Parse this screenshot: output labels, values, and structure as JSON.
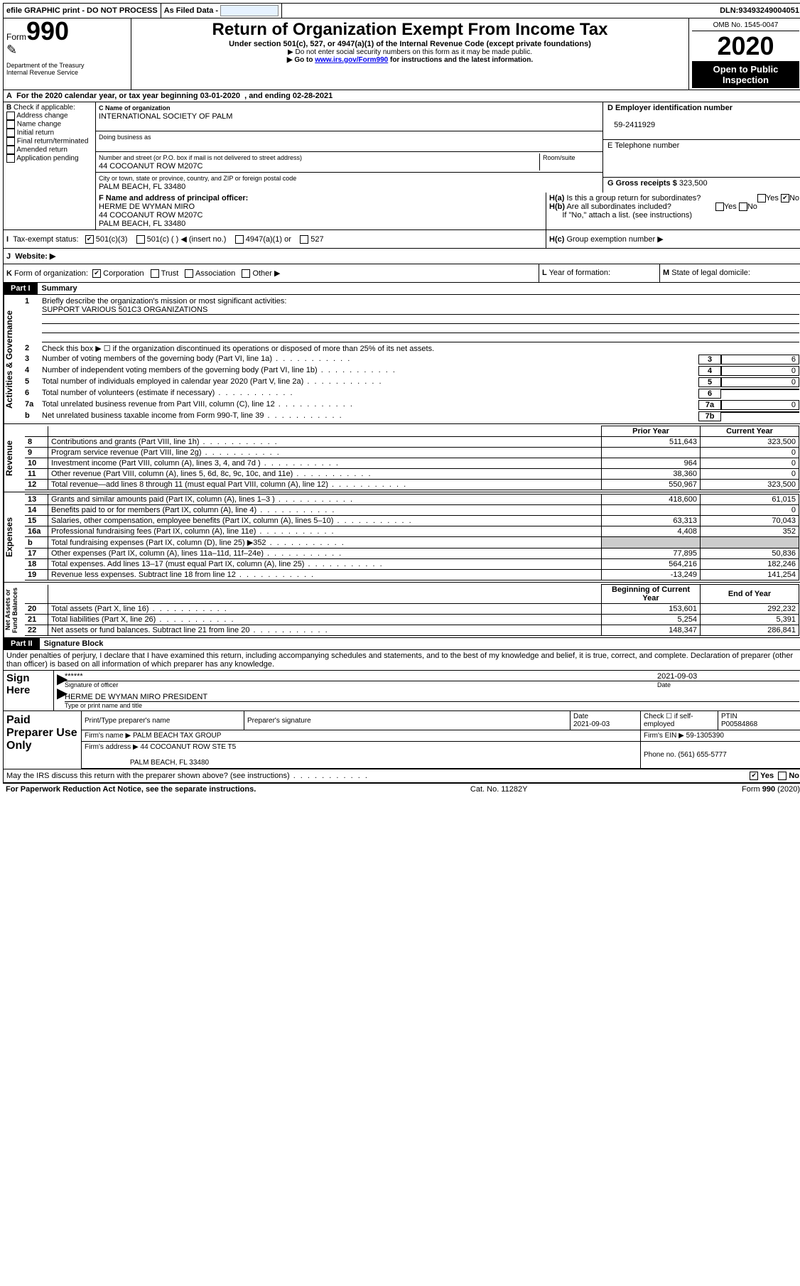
{
  "topbar": {
    "efile": "efile GRAPHIC print - DO NOT PROCESS",
    "asfiled": "As Filed Data -",
    "dln_label": "DLN:",
    "dln": "93493249004051"
  },
  "header": {
    "formword": "Form",
    "form": "990",
    "dept": "Department of the Treasury\nInternal Revenue Service",
    "title": "Return of Organization Exempt From Income Tax",
    "subtitle": "Under section 501(c), 527, or 4947(a)(1) of the Internal Revenue Code (except private foundations)",
    "note1": "▶ Do not enter social security numbers on this form as it may be made public.",
    "note2_pre": "▶ Go to ",
    "note2_link": "www.irs.gov/Form990",
    "note2_post": " for instructions and the latest information.",
    "omb": "OMB No. 1545-0047",
    "year": "2020",
    "opentopublic": "Open to Public Inspection"
  },
  "A": {
    "text_pre": "For the 2020 calendar year, or tax year beginning ",
    "begin": "03-01-2020",
    "mid": ", and ending ",
    "end": "02-28-2021"
  },
  "B": {
    "label": "Check if applicable:",
    "items": [
      "Address change",
      "Name change",
      "Initial return",
      "Final return/terminated",
      "Amended return",
      "Application pending"
    ]
  },
  "C": {
    "name_label": "C Name of organization",
    "name": "INTERNATIONAL SOCIETY OF PALM",
    "dba_label": "Doing business as",
    "dba": "",
    "street_label": "Number and street (or P.O. box if mail is not delivered to street address)",
    "room_label": "Room/suite",
    "street": "44 COCOANUT ROW M207C",
    "city_label": "City or town, state or province, country, and ZIP or foreign postal code",
    "city": "PALM BEACH, FL  33480"
  },
  "D": {
    "label": "D Employer identification number",
    "value": "59-2411929"
  },
  "E": {
    "label": "E Telephone number",
    "value": ""
  },
  "G": {
    "label": "G Gross receipts $",
    "value": "323,500"
  },
  "F": {
    "label": "F  Name and address of principal officer:",
    "name": "HERME DE WYMAN MIRO",
    "addr1": "44 COCOANUT ROW M207C",
    "addr2": "PALM BEACH, FL  33480"
  },
  "H": {
    "a": "Is this a group return for subordinates?",
    "a_yes": "Yes",
    "a_no": "No",
    "b": "Are all subordinates included?",
    "b_yes": "Yes",
    "b_no": "No",
    "note": "If \"No,\" attach a list. (see instructions)",
    "c": "Group exemption number ▶"
  },
  "I": {
    "label": "Tax-exempt status:",
    "opt1": "501(c)(3)",
    "opt2": "501(c) (   ) ◀ (insert no.)",
    "opt3": "4947(a)(1) or",
    "opt4": "527"
  },
  "J": {
    "label": "Website: ▶"
  },
  "K": {
    "label": "Form of organization:",
    "opts": [
      "Corporation",
      "Trust",
      "Association",
      "Other ▶"
    ]
  },
  "L": {
    "label": "Year of formation:"
  },
  "M": {
    "label": "State of legal domicile:"
  },
  "partI": {
    "label": "Part I",
    "title": "Summary"
  },
  "summary": {
    "line1_label": "Briefly describe the organization's mission or most significant activities:",
    "line1_val": "SUPPORT VARIOUS 501C3 ORGANIZATIONS",
    "line2": "Check this box ▶ ☐ if the organization discontinued its operations or disposed of more than 25% of its net assets.",
    "lines": [
      {
        "n": "3",
        "lbl": "Number of voting members of the governing body (Part VI, line 1a)",
        "box": "3",
        "val": "6"
      },
      {
        "n": "4",
        "lbl": "Number of independent voting members of the governing body (Part VI, line 1b)",
        "box": "4",
        "val": "0"
      },
      {
        "n": "5",
        "lbl": "Total number of individuals employed in calendar year 2020 (Part V, line 2a)",
        "box": "5",
        "val": "0"
      },
      {
        "n": "6",
        "lbl": "Total number of volunteers (estimate if necessary)",
        "box": "6",
        "val": ""
      },
      {
        "n": "7a",
        "lbl": "Total unrelated business revenue from Part VIII, column (C), line 12",
        "box": "7a",
        "val": "0"
      },
      {
        "n": "b",
        "lbl": "Net unrelated business taxable income from Form 990-T, line 39",
        "box": "7b",
        "val": ""
      }
    ]
  },
  "revhead": {
    "prior": "Prior Year",
    "current": "Current Year"
  },
  "revenue": [
    {
      "n": "8",
      "lbl": "Contributions and grants (Part VIII, line 1h)",
      "p": "511,643",
      "c": "323,500"
    },
    {
      "n": "9",
      "lbl": "Program service revenue (Part VIII, line 2g)",
      "p": "",
      "c": "0"
    },
    {
      "n": "10",
      "lbl": "Investment income (Part VIII, column (A), lines 3, 4, and 7d )",
      "p": "964",
      "c": "0"
    },
    {
      "n": "11",
      "lbl": "Other revenue (Part VIII, column (A), lines 5, 6d, 8c, 9c, 10c, and 11e)",
      "p": "38,360",
      "c": "0"
    },
    {
      "n": "12",
      "lbl": "Total revenue—add lines 8 through 11 (must equal Part VIII, column (A), line 12)",
      "p": "550,967",
      "c": "323,500"
    }
  ],
  "expenses": [
    {
      "n": "13",
      "lbl": "Grants and similar amounts paid (Part IX, column (A), lines 1–3 )",
      "p": "418,600",
      "c": "61,015"
    },
    {
      "n": "14",
      "lbl": "Benefits paid to or for members (Part IX, column (A), line 4)",
      "p": "",
      "c": "0"
    },
    {
      "n": "15",
      "lbl": "Salaries, other compensation, employee benefits (Part IX, column (A), lines 5–10)",
      "p": "63,313",
      "c": "70,043"
    },
    {
      "n": "16a",
      "lbl": "Professional fundraising fees (Part IX, column (A), line 11e)",
      "p": "4,408",
      "c": "352"
    },
    {
      "n": "b",
      "lbl": "Total fundraising expenses (Part IX, column (D), line 25) ▶352",
      "p": "__shade__",
      "c": "__shade__"
    },
    {
      "n": "17",
      "lbl": "Other expenses (Part IX, column (A), lines 11a–11d, 11f–24e)",
      "p": "77,895",
      "c": "50,836"
    },
    {
      "n": "18",
      "lbl": "Total expenses. Add lines 13–17 (must equal Part IX, column (A), line 25)",
      "p": "564,216",
      "c": "182,246"
    },
    {
      "n": "19",
      "lbl": "Revenue less expenses. Subtract line 18 from line 12",
      "p": "-13,249",
      "c": "141,254"
    }
  ],
  "nahead": {
    "prior": "Beginning of Current Year",
    "current": "End of Year"
  },
  "netassets": [
    {
      "n": "20",
      "lbl": "Total assets (Part X, line 16)",
      "p": "153,601",
      "c": "292,232"
    },
    {
      "n": "21",
      "lbl": "Total liabilities (Part X, line 26)",
      "p": "5,254",
      "c": "5,391"
    },
    {
      "n": "22",
      "lbl": "Net assets or fund balances. Subtract line 21 from line 20",
      "p": "148,347",
      "c": "286,841"
    }
  ],
  "partII": {
    "label": "Part II",
    "title": "Signature Block"
  },
  "perjury": "Under penalties of perjury, I declare that I have examined this return, including accompanying schedules and statements, and to the best of my knowledge and belief, it is true, correct, and complete. Declaration of preparer (other than officer) is based on all information of which preparer has any knowledge.",
  "sign": {
    "here": "Sign Here",
    "stars": "******",
    "sig_label": "Signature of officer",
    "date": "2021-09-03",
    "date_label": "Date",
    "name": "HERME DE WYMAN MIRO  PRESIDENT",
    "name_label": "Type or print name and title"
  },
  "paid": {
    "side": "Paid Preparer Use Only",
    "h1": "Print/Type preparer's name",
    "h2": "Preparer's signature",
    "h3": "Date",
    "date": "2021-09-03",
    "h4_pre": "Check ☐ if self-employed",
    "h5": "PTIN",
    "ptin": "P00584868",
    "firmname_label": "Firm's name   ▶",
    "firmname": "PALM BEACH TAX GROUP",
    "ein_label": "Firm's EIN ▶",
    "ein": "59-1305390",
    "addr_label": "Firm's address ▶",
    "addr1": "44 COCOANUT ROW STE T5",
    "addr2": "PALM BEACH, FL  33480",
    "phone_label": "Phone no.",
    "phone": "(561) 655-5777"
  },
  "discuss": {
    "q": "May the IRS discuss this return with the preparer shown above? (see instructions)",
    "yes": "Yes",
    "no": "No"
  },
  "footer": {
    "left": "For Paperwork Reduction Act Notice, see the separate instructions.",
    "mid": "Cat. No. 11282Y",
    "right": "Form 990 (2020)"
  },
  "sidelabels": {
    "gov": "Activities & Governance",
    "rev": "Revenue",
    "exp": "Expenses",
    "na": "Net Assets or Fund Balances"
  }
}
